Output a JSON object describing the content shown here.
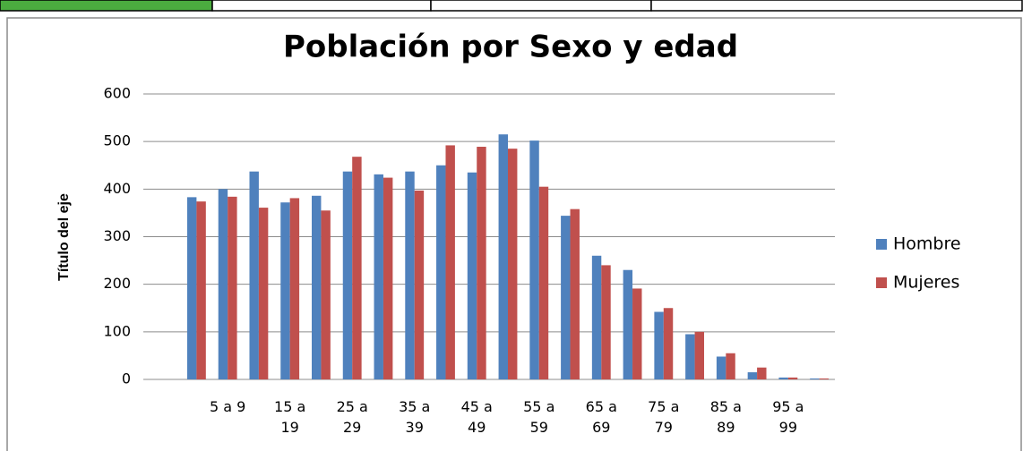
{
  "chart_data": {
    "type": "bar",
    "title": "Población por Sexo y edad",
    "y_axis_title": "Título del eje",
    "categories": [
      null,
      "5 a 9",
      null,
      "15 a 19",
      null,
      "25 a 29",
      null,
      "35 a 39",
      null,
      "45 a 49",
      null,
      "55 a 59",
      null,
      "65 a 69",
      null,
      "75 a 79",
      null,
      "85 a 89",
      null,
      "95 a 99",
      null
    ],
    "series": [
      {
        "name": "Hombre",
        "color": "#4f81bd",
        "values": [
          383,
          400,
          437,
          372,
          386,
          437,
          431,
          437,
          450,
          435,
          515,
          502,
          344,
          260,
          230,
          142,
          95,
          48,
          15,
          4,
          2
        ]
      },
      {
        "name": "Mujeres",
        "color": "#c0504d",
        "values": [
          374,
          384,
          361,
          381,
          355,
          468,
          424,
          397,
          492,
          489,
          485,
          405,
          358,
          240,
          191,
          150,
          100,
          55,
          25,
          4,
          2
        ]
      }
    ],
    "ylim": [
      0,
      600
    ],
    "yticks": [
      0,
      100,
      200,
      300,
      400,
      500,
      600
    ],
    "grid": true,
    "legend": "right"
  }
}
